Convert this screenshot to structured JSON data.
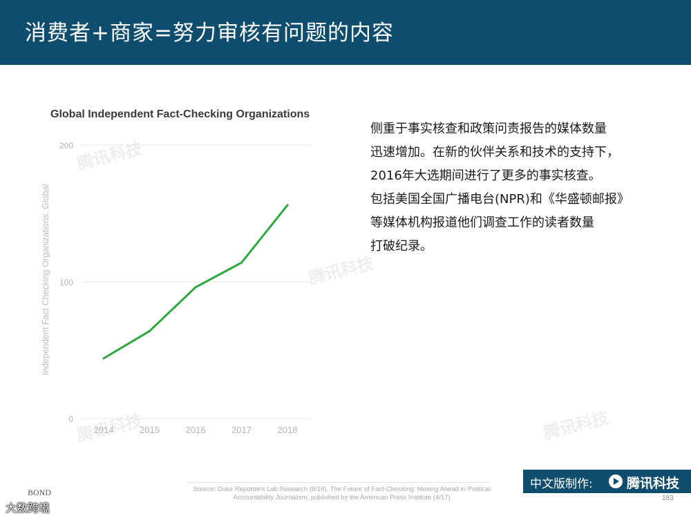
{
  "header": {
    "title": "消费者+商家=努力审核有问题的内容"
  },
  "chart_data": {
    "type": "line",
    "title": "Global Independent Fact-Checking Organizations",
    "xlabel": "",
    "ylabel": "Independent Fact Checking Organizations, Global",
    "x": [
      "2014",
      "2015",
      "2016",
      "2017",
      "2018"
    ],
    "series": [
      {
        "values": [
          44,
          64,
          96,
          114,
          156
        ],
        "color": "#2aa83a"
      }
    ],
    "ylim": [
      0,
      200
    ],
    "yticks": [
      "0",
      "100",
      "200"
    ],
    "grid": true
  },
  "body": {
    "lines": [
      "侧重于事实核查和政策问责报告的媒体数量",
      "迅速增加。在新的伙伴关系和技术的支持下，",
      "2016年大选期间进行了更多的事实核查。",
      "包括美国全国广播电台(NPR)和《华盛顿邮报》",
      "等媒体机构报道他们调查工作的读者数量",
      "打破纪录。"
    ]
  },
  "footer": {
    "source_line1": "Source: Duke Reporter's Lab Research (8/18), The Future of Fact-Checking: Moving Ahead in Political",
    "source_line2": "Accountability Journalism, published by the American Press Institute (4/17)",
    "credit_label": "中文版制作:",
    "credit_brand": "腾讯科技",
    "page_number": "183",
    "bond": "BOND",
    "corner_mark": "大数跨境",
    "watermark": "腾讯科技"
  },
  "colors": {
    "header": "#0f4d6e",
    "line": "#2aa83a",
    "grid": "#e6e6e6"
  }
}
